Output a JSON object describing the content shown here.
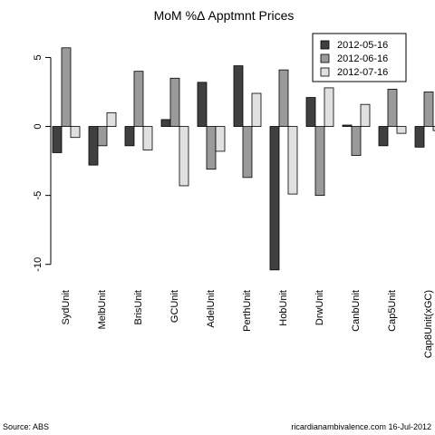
{
  "chart_data": {
    "type": "bar",
    "title": "MoM %Δ Apptmnt Prices",
    "xlabel": "",
    "ylabel": "",
    "categories": [
      "SydUnit",
      "MelbUnit",
      "BrisUnit",
      "GCUnit",
      "AdelUnit",
      "PerthUnit",
      "HobUnit",
      "DrwUnit",
      "CanbUnit",
      "Cap5Unit",
      "Cap8Unit(xGC)"
    ],
    "series": [
      {
        "name": "2012-05-16",
        "color": "#404040",
        "values": [
          -1.9,
          -2.8,
          -1.4,
          0.5,
          3.2,
          4.4,
          -10.4,
          2.1,
          0.1,
          -1.4,
          -1.5
        ]
      },
      {
        "name": "2012-06-16",
        "color": "#9a9a9a",
        "values": [
          5.7,
          -1.4,
          4.0,
          3.5,
          -3.1,
          -3.7,
          4.1,
          -5.0,
          -2.1,
          2.7,
          2.5
        ]
      },
      {
        "name": "2012-07-16",
        "color": "#e0e0e0",
        "values": [
          -0.8,
          1.0,
          -1.7,
          -4.3,
          -1.8,
          2.4,
          -4.9,
          2.8,
          1.6,
          -0.5,
          -0.3
        ]
      }
    ],
    "ylim": [
      -11.2,
      7.0
    ],
    "yticks": [
      5,
      0,
      -5,
      -10
    ],
    "grid": false,
    "legend_position": "top-right"
  },
  "footer": {
    "source": "Source: ABS",
    "credit": "ricardianambivalence.com    16-Jul-2012"
  }
}
